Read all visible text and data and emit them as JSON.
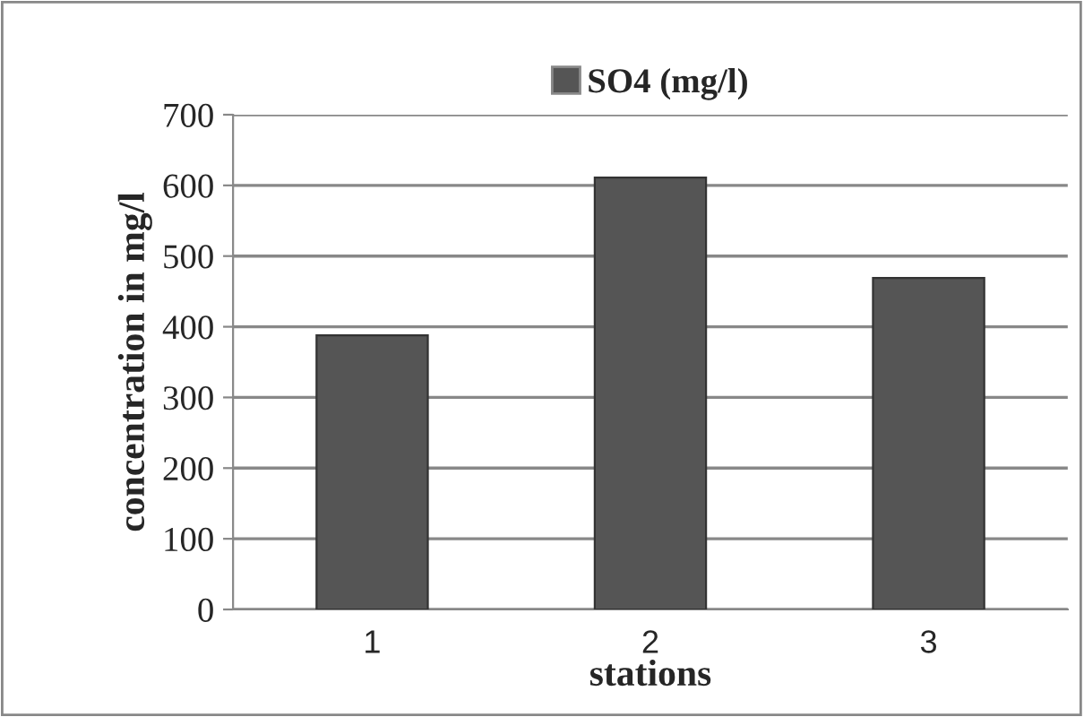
{
  "chart_data": {
    "type": "bar",
    "xlabel": "stations",
    "ylabel": "concentration in mg/l",
    "categories": [
      "1",
      "2",
      "3"
    ],
    "series": [
      {
        "name": "SO4 (mg/l)",
        "color": "#555555",
        "values": [
          388,
          611,
          469
        ]
      }
    ],
    "ylim": [
      0,
      700
    ],
    "yticks": [
      0,
      100,
      200,
      300,
      400,
      500,
      600,
      700
    ],
    "grid": "y",
    "legend": "top"
  }
}
